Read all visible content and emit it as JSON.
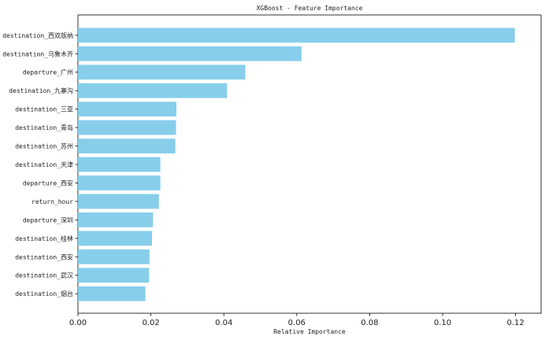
{
  "chart_data": {
    "type": "bar",
    "orientation": "horizontal",
    "title": "XGBoost - Feature Importance",
    "xlabel": "Relative Importance",
    "ylabel": "",
    "xlim": [
      0,
      0.127
    ],
    "xticks": [
      0.0,
      0.02,
      0.04,
      0.06,
      0.08,
      0.1,
      0.12
    ],
    "xtick_labels": [
      "0.00",
      "0.02",
      "0.04",
      "0.06",
      "0.08",
      "0.10",
      "0.12"
    ],
    "bar_color": "#87ceeb",
    "grid": false,
    "categories": [
      "destination_西双版纳",
      "destination_乌鲁木齐",
      "departure_广州",
      "destination_九寨沟",
      "destination_三亚",
      "destination_青岛",
      "destination_苏州",
      "destination_天津",
      "departure_西安",
      "return_hour",
      "departure_深圳",
      "destination_桂林",
      "destination_西安",
      "destination_武汉",
      "destination_烟台"
    ],
    "values": [
      0.1198,
      0.0613,
      0.0459,
      0.0409,
      0.027,
      0.0269,
      0.0267,
      0.0226,
      0.0226,
      0.0222,
      0.0206,
      0.0203,
      0.0196,
      0.0195,
      0.0185
    ]
  }
}
